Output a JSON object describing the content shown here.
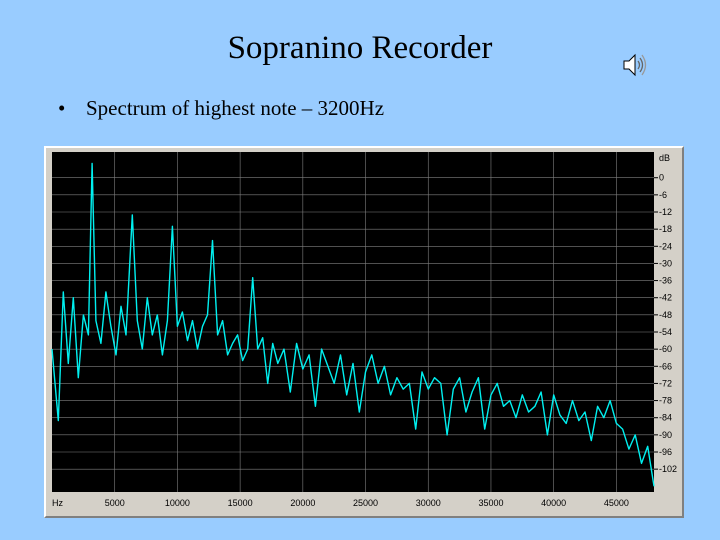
{
  "slide": {
    "title": "Sopranino Recorder",
    "bullet": "Spectrum of highest note – 3200Hz",
    "bullet_marker": "•",
    "sound_icon": "speaker-icon"
  },
  "colors": {
    "background": "#99ccff",
    "plot_bg": "#000000",
    "grid": "#808080",
    "trace": "#00f0f0",
    "frame": "#d4d0c8"
  },
  "chart_data": {
    "type": "line",
    "title": "",
    "xlabel": "Hz",
    "ylabel": "dB",
    "xlim": [
      0,
      48000
    ],
    "ylim": [
      -110,
      9
    ],
    "grid": true,
    "x_ticks": [
      5000,
      10000,
      15000,
      20000,
      25000,
      30000,
      35000,
      40000,
      45000
    ],
    "x_tick_labels": [
      "5000",
      "10000",
      "15000",
      "20000",
      "25000",
      "30000",
      "35000",
      "40000",
      "45000"
    ],
    "y_ticks": [
      0,
      -6,
      -12,
      -18,
      -24,
      -30,
      -36,
      -42,
      -48,
      -54,
      -60,
      -66,
      -72,
      -78,
      -84,
      -90,
      -96,
      -102
    ],
    "y_tick_labels": [
      "0",
      "-6",
      "-12",
      "-18",
      "-24",
      "-30",
      "-36",
      "-42",
      "-48",
      "-54",
      "-60",
      "-66",
      "-72",
      "-78",
      "-84",
      "-90",
      "-96",
      "-102"
    ],
    "peaks_hz": [
      3200,
      6400,
      9600,
      12800,
      16000
    ],
    "series": [
      {
        "x": [
          0,
          500,
          900,
          1300,
          1700,
          2100,
          2500,
          2900,
          3200,
          3500,
          3900,
          4300,
          4700,
          5100,
          5500,
          5900,
          6400,
          6800,
          7200,
          7600,
          8000,
          8400,
          8800,
          9200,
          9600,
          10000,
          10400,
          10800,
          11200,
          11600,
          12000,
          12400,
          12800,
          13200,
          13600,
          14000,
          14400,
          14800,
          15200,
          15600,
          16000,
          16400,
          16800,
          17200,
          17600,
          18000,
          18500,
          19000,
          19500,
          20000,
          20500,
          21000,
          21500,
          22000,
          22500,
          23000,
          23500,
          24000,
          24500,
          25000,
          25500,
          26000,
          26500,
          27000,
          27500,
          28000,
          28500,
          29000,
          29500,
          30000,
          30500,
          31000,
          31500,
          32000,
          32500,
          33000,
          33500,
          34000,
          34500,
          35000,
          35500,
          36000,
          36500,
          37000,
          37500,
          38000,
          38500,
          39000,
          39500,
          40000,
          40500,
          41000,
          41500,
          42000,
          42500,
          43000,
          43500,
          44000,
          44500,
          45000,
          45500,
          46000,
          46500,
          47000,
          47500,
          48000
        ],
        "y": [
          -60,
          -85,
          -40,
          -65,
          -42,
          -70,
          -48,
          -55,
          5,
          -50,
          -58,
          -40,
          -52,
          -62,
          -45,
          -55,
          -13,
          -50,
          -60,
          -42,
          -55,
          -48,
          -62,
          -50,
          -17,
          -52,
          -47,
          -57,
          -50,
          -60,
          -52,
          -48,
          -22,
          -55,
          -50,
          -62,
          -58,
          -55,
          -64,
          -60,
          -35,
          -60,
          -56,
          -72,
          -58,
          -65,
          -60,
          -75,
          -58,
          -67,
          -62,
          -80,
          -60,
          -66,
          -72,
          -62,
          -76,
          -65,
          -82,
          -68,
          -62,
          -72,
          -66,
          -76,
          -70,
          -74,
          -72,
          -88,
          -68,
          -74,
          -70,
          -72,
          -90,
          -74,
          -70,
          -82,
          -75,
          -70,
          -88,
          -76,
          -72,
          -80,
          -78,
          -84,
          -76,
          -82,
          -80,
          -75,
          -90,
          -76,
          -83,
          -86,
          -78,
          -85,
          -82,
          -92,
          -80,
          -84,
          -78,
          -86,
          -88,
          -95,
          -90,
          -100,
          -94,
          -108
        ]
      }
    ]
  }
}
